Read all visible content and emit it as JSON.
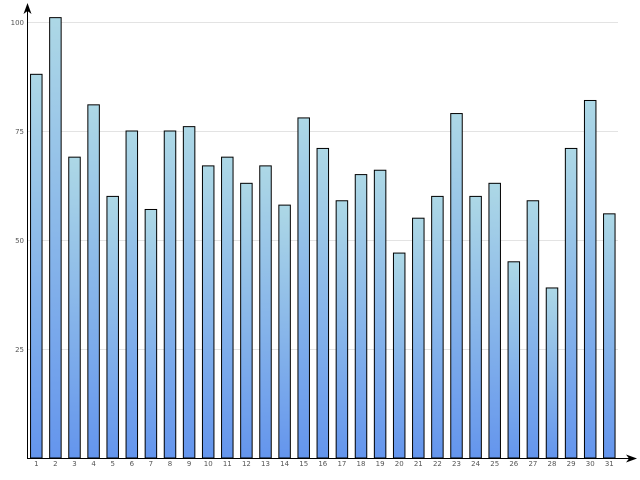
{
  "chart_data": {
    "type": "bar",
    "title": "",
    "xlabel": "",
    "ylabel": "",
    "categories": [
      "1",
      "2",
      "3",
      "4",
      "5",
      "6",
      "7",
      "8",
      "9",
      "10",
      "11",
      "12",
      "13",
      "14",
      "15",
      "16",
      "17",
      "18",
      "19",
      "20",
      "21",
      "22",
      "23",
      "24",
      "25",
      "26",
      "27",
      "28",
      "29",
      "30",
      "31"
    ],
    "values": [
      88,
      101,
      69,
      81,
      60,
      75,
      57,
      75,
      76,
      67,
      69,
      63,
      67,
      58,
      78,
      71,
      59,
      65,
      66,
      47,
      55,
      60,
      79,
      60,
      63,
      45,
      59,
      39,
      71,
      82,
      56
    ],
    "ylim": [
      0,
      100
    ],
    "yticks": [
      "25",
      "50",
      "75",
      "100"
    ],
    "ytick_values": [
      25,
      50,
      75,
      100
    ],
    "grid": "horizontal",
    "legend": "none",
    "colors": {
      "bar_top": "#add8e6",
      "bar_bottom": "#6495ed",
      "bar_stroke": "#000000",
      "grid": "#e3e3e3",
      "axis": "#000000"
    }
  }
}
